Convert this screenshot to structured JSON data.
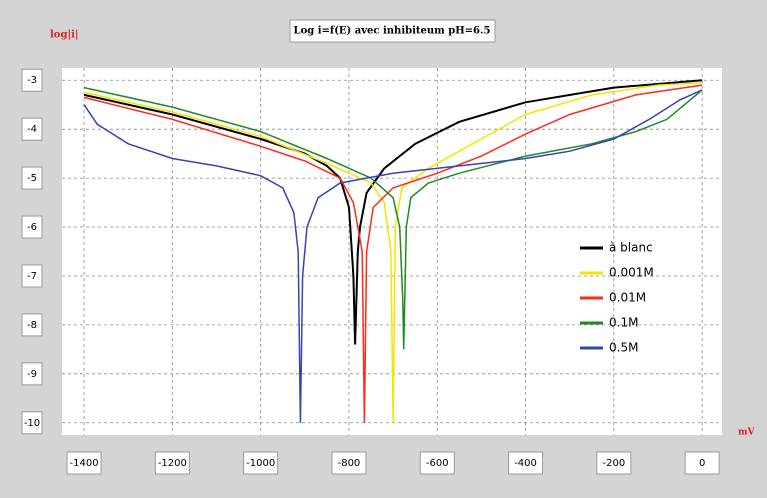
{
  "chart_data": {
    "type": "line",
    "title": "Log i=f(E) avec inhibiteum pH=6.5",
    "y_label": "log|i|",
    "x_label": "mV",
    "xlim": [
      -1450,
      45
    ],
    "ylim": [
      -10.25,
      -2.75
    ],
    "xticks": [
      -1400,
      -1200,
      -1000,
      -800,
      -600,
      -400,
      -200,
      0
    ],
    "yticks": [
      -3,
      -4,
      -5,
      -6,
      -7,
      -8,
      -9,
      -10
    ],
    "grid": true,
    "legend": "right",
    "series": [
      {
        "name": "à blanc",
        "color": "#000000",
        "x": [
          -1400,
          -1200,
          -1000,
          -900,
          -850,
          -820,
          -800,
          -790,
          -786,
          -780,
          -775,
          -760,
          -720,
          -650,
          -550,
          -400,
          -200,
          0
        ],
        "values": [
          -3.3,
          -3.7,
          -4.2,
          -4.5,
          -4.75,
          -5.0,
          -5.6,
          -7.0,
          -8.4,
          -6.5,
          -6.0,
          -5.3,
          -4.8,
          -4.3,
          -3.85,
          -3.45,
          -3.15,
          -3.0
        ]
      },
      {
        "name": "0.001M",
        "color": "#f2e600",
        "x": [
          -1400,
          -1200,
          -1000,
          -850,
          -750,
          -720,
          -705,
          -700,
          -695,
          -680,
          -620,
          -520,
          -400,
          -250,
          -100,
          0
        ],
        "values": [
          -3.25,
          -3.65,
          -4.15,
          -4.7,
          -5.1,
          -5.5,
          -6.5,
          -10,
          -6.0,
          -5.2,
          -4.8,
          -4.3,
          -3.7,
          -3.3,
          -3.1,
          -3.05
        ]
      },
      {
        "name": "0.01M",
        "color": "#ff2a1a",
        "x": [
          -1400,
          -1200,
          -1000,
          -900,
          -820,
          -790,
          -770,
          -765,
          -760,
          -745,
          -700,
          -600,
          -500,
          -400,
          -300,
          -150,
          0
        ],
        "values": [
          -3.35,
          -3.8,
          -4.35,
          -4.65,
          -5.0,
          -5.5,
          -6.5,
          -10,
          -6.5,
          -5.6,
          -5.2,
          -4.9,
          -4.55,
          -4.1,
          -3.7,
          -3.3,
          -3.1
        ]
      },
      {
        "name": "0.1M",
        "color": "#1f8a1f",
        "x": [
          -1400,
          -1200,
          -1000,
          -850,
          -750,
          -700,
          -685,
          -678,
          -676,
          -670,
          -660,
          -620,
          -550,
          -400,
          -250,
          -150,
          -80,
          -40,
          0
        ],
        "values": [
          -3.15,
          -3.55,
          -4.05,
          -4.6,
          -5.0,
          -5.4,
          -6.0,
          -7.5,
          -8.5,
          -6.0,
          -5.4,
          -5.1,
          -4.9,
          -4.55,
          -4.3,
          -4.05,
          -3.8,
          -3.5,
          -3.2
        ]
      },
      {
        "name": "0.5M",
        "color": "#3344b5",
        "x": [
          -1400,
          -1370,
          -1300,
          -1200,
          -1100,
          -1000,
          -950,
          -925,
          -915,
          -910,
          -905,
          -895,
          -870,
          -820,
          -700,
          -550,
          -400,
          -300,
          -200,
          -120,
          -50,
          0
        ],
        "values": [
          -3.5,
          -3.9,
          -4.3,
          -4.6,
          -4.75,
          -4.95,
          -5.2,
          -5.7,
          -6.5,
          -10,
          -7.0,
          -6.0,
          -5.4,
          -5.1,
          -4.9,
          -4.75,
          -4.6,
          -4.45,
          -4.2,
          -3.8,
          -3.4,
          -3.2
        ]
      }
    ]
  }
}
